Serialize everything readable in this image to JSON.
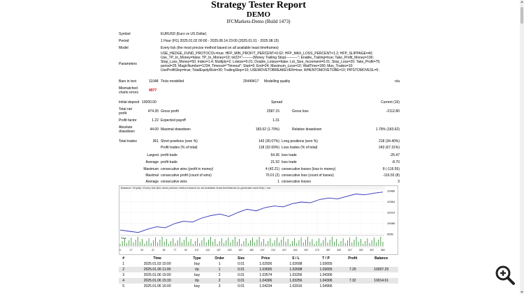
{
  "header": {
    "title": "Strategy Tester Report",
    "subtitle": "DEMO",
    "server": "IFCMarkets-Demo (Build 1473)"
  },
  "settings": {
    "symbol_label": "Symbol",
    "symbol": "EURUSD (Euro vs US Dollar)",
    "period_label": "Period",
    "period": "1 Hour (H1) 2025.01.02 00:00 - 2025.08.14 23:00 (2025.01.01 - 2025.08.15)",
    "model_label": "Model",
    "model": "Every tick (the most precise method based on all available least timeframes)",
    "params_label": "Parameters",
    "params_lines": [
      "USE_HEDGE_FUND_PROTOCOL=true; HFP_MIN_PROFIT_PERCENT=0.62; HFP_MAX_LOSS_PERCENT=1.2; HFP_SLIPPAGE=40;",
      "Use_TP_In_Money=false; TP_In_Money=10; txt22=\"---------(Money Trailing Stop)----------\"; Enable_Trailing=true; Take_Profit_Money=100;",
      "Stop_Loss_Money=50; Index=1.4; Multiply=2; Lotsize=0.01; Double_Lotsize=false; Lot_Size_Increment=0.01; Stop_Loss=20; Take_Profit=75;",
      "period=25; MagicNumber=1234; Timeout=\"Timeout\"; Start=0; End=24; Maximum_Loss=10; WaitTime=180; Max_Trades=10;",
      "UseProfitStop=true; TotalEquityRisk=30; TrailingStop=10; USEMOVETOBREAKEVEN=true; WHENTOMOVETOBE=10; PIPSTOMOVESL=5;"
    ],
    "bars_label": "Bars in test",
    "bars": "11048",
    "ticks_label": "Ticks modelled",
    "ticks": "25449417",
    "quality_label": "Modelling quality",
    "quality": "n/a",
    "mismatch_label_1": "Mismatched",
    "mismatch_label_2": "charts errors",
    "mismatch": "4977"
  },
  "stats": {
    "initial_deposit_label": "Initial deposit",
    "initial_deposit": "10000.00",
    "spread_label": "Spread",
    "spread": "Current (16)",
    "net_profit_label_1": "Total net",
    "net_profit_label_2": "profit",
    "net_profit": "474.35",
    "gross_profit_label": "Gross profit",
    "gross_profit": "2587.15",
    "gross_loss_label": "Gross loss",
    "gross_loss": "-2112.80",
    "profit_factor_label": "Profit factor",
    "profit_factor": "1.22",
    "expected_payoff_label": "Expected payoff",
    "expected_payoff": "1.31",
    "abs_dd_label_1": "Absolute",
    "abs_dd_label_2": "drawdown",
    "abs_dd": "44.00",
    "max_dd_label": "Maximal drawdown",
    "max_dd": "183.62 (1.79%)",
    "rel_dd_label": "Relative drawdown",
    "rel_dd": "1.79% (183.62)",
    "total_trades_label": "Total trades",
    "total_trades": "361",
    "short_label": "Short positions (won %)",
    "short": "143 (30.07%)",
    "long_label": "Long positions (won %)",
    "long": "218 (34.40%)",
    "profit_trades_label": "Profit trades (% of total)",
    "profit_trades": "118 (32.69%)",
    "loss_trades_label": "Loss trades (% of total)",
    "loss_trades": "243 (67.31%)",
    "largest_label": "Largest",
    "largest_profit_label": "profit trade",
    "largest_profit": "64.36",
    "largest_loss_label": "loss trade",
    "largest_loss": "-25.47",
    "average_label": "Average",
    "avg_profit_label": "profit trade",
    "avg_profit": "21.92",
    "avg_loss_label": "loss trade",
    "avg_loss": "-8.70",
    "maximum_label": "Maximum",
    "max_wins_label": "consecutive wins (profit in money)",
    "max_wins": "4 (42.21)",
    "max_losses_label": "consecutive losses (loss in money)",
    "max_losses": "8 (-116.55)",
    "maximal_label": "Maximal",
    "maximal_profit_label": "consecutive profit (count of wins)",
    "maximal_profit": "70.01 (2)",
    "maximal_loss_label": "consecutive loss (count of losses)",
    "maximal_loss": "-116.55 (8)",
    "average2_label": "Average",
    "avg_wins_label": "consecutive wins",
    "avg_wins": "1",
    "avg_losses_label": "consecutive losses",
    "avg_losses": "3"
  },
  "chart_data": {
    "type": "line",
    "legend_text": "Balance / Equity / Every tick (the most precise method based on all available least timeframes to generate each tick) / n/a",
    "series": [
      {
        "values": [
          10000,
          9985,
          9970,
          10010,
          10040,
          10030,
          10080,
          10110,
          10100,
          10150,
          10180,
          10200,
          10170,
          10220,
          10260,
          10240,
          10280,
          10300,
          10290,
          10330,
          10350,
          10340,
          10380,
          10400,
          10390,
          10420,
          10450,
          10440,
          10460,
          10474
        ]
      }
    ],
    "y_ticks": [
      "10489",
      "10354",
      "10219",
      "10085",
      "9950"
    ],
    "x_ticks": [
      "0",
      "17",
      "32",
      "47",
      "62",
      "77",
      "92",
      "107",
      "122",
      "137",
      "152",
      "167",
      "182",
      "197",
      "212",
      "227",
      "242",
      "257",
      "272",
      "287",
      "302",
      "317",
      "332",
      "347",
      "362"
    ],
    "size_label": "Size",
    "ylim": [
      9950,
      10489
    ]
  },
  "trades": {
    "columns": [
      "#",
      "Time",
      "Type",
      "Order",
      "Size",
      "Price",
      "S / L",
      "T / P",
      "Profit",
      "Balance"
    ],
    "rows": [
      [
        "1",
        "2025.01.03 15:00",
        "buy",
        "1",
        "0.01",
        "1.02926",
        "1.02698",
        "1.03655",
        "",
        ""
      ],
      [
        "2",
        "2025.01.06 11:00",
        "t/p",
        "1",
        "0.01",
        "1.03655",
        "1.02698",
        "1.03655",
        "7.29",
        "10007.29"
      ],
      [
        "3",
        "2025.01.06 15:00",
        "buy",
        "2",
        "0.01",
        "1.03574",
        "1.03256",
        "1.04306",
        "",
        ""
      ],
      [
        "4",
        "2025.01.06 15:33",
        "t/p",
        "2",
        "0.01",
        "1.04306",
        "1.03256",
        "1.04306",
        "7.32",
        "10014.61"
      ],
      [
        "5",
        "2025.01.06 16:00",
        "buy",
        "3",
        "0.01",
        "1.04234",
        "1.03916",
        "1.04966",
        "",
        ""
      ]
    ]
  }
}
